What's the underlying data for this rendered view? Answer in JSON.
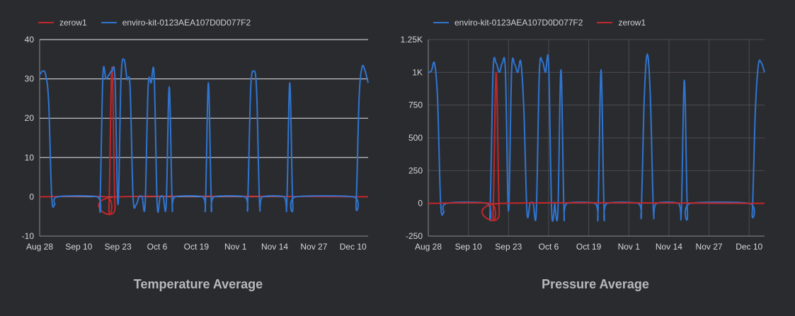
{
  "chart_data": [
    {
      "type": "line",
      "title": "Temperature Average",
      "ylim": [
        -10,
        40
      ],
      "yticks": [
        "-10",
        "0",
        "10",
        "20",
        "30",
        "40"
      ],
      "ytick_values": [
        -10,
        0,
        10,
        20,
        30,
        40
      ],
      "x_range": [
        "2023-08-28",
        "2023-12-15"
      ],
      "xticks": [
        "Aug 28",
        "Sep 10",
        "Sep 23",
        "Oct 6",
        "Oct 19",
        "Nov 1",
        "Nov 14",
        "Nov 27",
        "Dec 10"
      ],
      "xtick_dates": [
        "2023-08-28",
        "2023-09-10",
        "2023-09-23",
        "2023-10-06",
        "2023-10-19",
        "2023-11-01",
        "2023-11-14",
        "2023-11-27",
        "2023-12-10"
      ],
      "grid": true,
      "legend": "top-left",
      "series": [
        {
          "name": "zerow1",
          "color": "#c0282a",
          "points": [
            [
              "2023-08-28",
              0
            ],
            [
              "2023-09-19",
              0
            ],
            [
              "2023-09-20",
              -2.5
            ],
            [
              "2023-09-21",
              33
            ],
            [
              "2023-09-22",
              -2.5
            ],
            [
              "2023-09-23",
              0
            ],
            [
              "2023-12-15",
              0
            ]
          ]
        },
        {
          "name": "enviro-kit-0123AEA107D0D077F2",
          "color": "#2f75d0",
          "points": [
            [
              "2023-08-28",
              31
            ],
            [
              "2023-08-29",
              32
            ],
            [
              "2023-08-30",
              31
            ],
            [
              "2023-08-31",
              24
            ],
            [
              "2023-09-01",
              0
            ],
            [
              "2023-09-02",
              -2
            ],
            [
              "2023-09-03",
              0
            ],
            [
              "2023-09-16",
              0
            ],
            [
              "2023-09-17",
              -2
            ],
            [
              "2023-09-18",
              31
            ],
            [
              "2023-09-19",
              30
            ],
            [
              "2023-09-20",
              31
            ],
            [
              "2023-09-21",
              32
            ],
            [
              "2023-09-22",
              30
            ],
            [
              "2023-09-23",
              -2
            ],
            [
              "2023-09-24",
              30
            ],
            [
              "2023-09-25",
              35
            ],
            [
              "2023-09-26",
              30
            ],
            [
              "2023-09-27",
              28
            ],
            [
              "2023-09-28",
              0
            ],
            [
              "2023-09-29",
              -2
            ],
            [
              "2023-09-30",
              0
            ],
            [
              "2023-10-01",
              0
            ],
            [
              "2023-10-02",
              -2
            ],
            [
              "2023-10-03",
              28
            ],
            [
              "2023-10-04",
              29
            ],
            [
              "2023-10-05",
              31
            ],
            [
              "2023-10-06",
              -2
            ],
            [
              "2023-10-07",
              0
            ],
            [
              "2023-10-08",
              0
            ],
            [
              "2023-10-09",
              -2
            ],
            [
              "2023-10-10",
              28
            ],
            [
              "2023-10-11",
              -2
            ],
            [
              "2023-10-12",
              0
            ],
            [
              "2023-10-21",
              0
            ],
            [
              "2023-10-22",
              -2
            ],
            [
              "2023-10-23",
              29
            ],
            [
              "2023-10-24",
              -2
            ],
            [
              "2023-10-25",
              0
            ],
            [
              "2023-11-04",
              0
            ],
            [
              "2023-11-05",
              -2
            ],
            [
              "2023-11-06",
              27
            ],
            [
              "2023-11-07",
              32
            ],
            [
              "2023-11-08",
              27
            ],
            [
              "2023-11-09",
              -2
            ],
            [
              "2023-11-10",
              0
            ],
            [
              "2023-11-17",
              0
            ],
            [
              "2023-11-18",
              -2
            ],
            [
              "2023-11-19",
              29
            ],
            [
              "2023-11-20",
              -2
            ],
            [
              "2023-11-21",
              0
            ],
            [
              "2023-12-10",
              0
            ],
            [
              "2023-12-11",
              -2
            ],
            [
              "2023-12-12",
              25
            ],
            [
              "2023-12-13",
              33
            ],
            [
              "2023-12-14",
              32
            ],
            [
              "2023-12-15",
              29
            ]
          ]
        }
      ]
    },
    {
      "type": "line",
      "title": "Pressure Average",
      "ylim": [
        -250,
        1250
      ],
      "yticks": [
        "-250",
        "0",
        "250",
        "500",
        "750",
        "1K",
        "1.25K"
      ],
      "ytick_values": [
        -250,
        0,
        250,
        500,
        750,
        1000,
        1250
      ],
      "x_range": [
        "2023-08-28",
        "2023-12-15"
      ],
      "xticks": [
        "Aug 28",
        "Sep 10",
        "Sep 23",
        "Oct 6",
        "Oct 19",
        "Nov 1",
        "Nov 14",
        "Nov 27",
        "Dec 10"
      ],
      "xtick_dates": [
        "2023-08-28",
        "2023-09-10",
        "2023-09-23",
        "2023-10-06",
        "2023-10-19",
        "2023-11-01",
        "2023-11-14",
        "2023-11-27",
        "2023-12-10"
      ],
      "grid": true,
      "legend": "top-left",
      "series": [
        {
          "name": "enviro-kit-0123AEA107D0D077F2",
          "color": "#2f75d0",
          "points": [
            [
              "2023-08-28",
              1000
            ],
            [
              "2023-08-29",
              1010
            ],
            [
              "2023-08-30",
              1070
            ],
            [
              "2023-08-31",
              800
            ],
            [
              "2023-09-01",
              0
            ],
            [
              "2023-09-02",
              -70
            ],
            [
              "2023-09-03",
              0
            ],
            [
              "2023-09-16",
              0
            ],
            [
              "2023-09-17",
              -70
            ],
            [
              "2023-09-18",
              1010
            ],
            [
              "2023-09-19",
              1070
            ],
            [
              "2023-09-20",
              1000
            ],
            [
              "2023-09-21",
              1070
            ],
            [
              "2023-09-22",
              1010
            ],
            [
              "2023-09-23",
              -60
            ],
            [
              "2023-09-24",
              1010
            ],
            [
              "2023-09-25",
              1060
            ],
            [
              "2023-09-26",
              1000
            ],
            [
              "2023-09-27",
              1080
            ],
            [
              "2023-09-28",
              700
            ],
            [
              "2023-09-29",
              -70
            ],
            [
              "2023-09-30",
              0
            ],
            [
              "2023-10-01",
              0
            ],
            [
              "2023-10-02",
              -70
            ],
            [
              "2023-10-03",
              1000
            ],
            [
              "2023-10-04",
              1080
            ],
            [
              "2023-10-05",
              1000
            ],
            [
              "2023-10-06",
              1070
            ],
            [
              "2023-10-07",
              -70
            ],
            [
              "2023-10-08",
              0
            ],
            [
              "2023-10-08",
              0
            ],
            [
              "2023-10-09",
              -70
            ],
            [
              "2023-10-10",
              1020
            ],
            [
              "2023-10-11",
              -70
            ],
            [
              "2023-10-12",
              0
            ],
            [
              "2023-10-21",
              0
            ],
            [
              "2023-10-22",
              -70
            ],
            [
              "2023-10-23",
              1020
            ],
            [
              "2023-10-24",
              -70
            ],
            [
              "2023-10-25",
              0
            ],
            [
              "2023-11-04",
              0
            ],
            [
              "2023-11-05",
              -70
            ],
            [
              "2023-11-06",
              800
            ],
            [
              "2023-11-07",
              1140
            ],
            [
              "2023-11-08",
              800
            ],
            [
              "2023-11-09",
              -70
            ],
            [
              "2023-11-10",
              0
            ],
            [
              "2023-11-17",
              0
            ],
            [
              "2023-11-18",
              -70
            ],
            [
              "2023-11-19",
              940
            ],
            [
              "2023-11-20",
              -70
            ],
            [
              "2023-11-21",
              0
            ],
            [
              "2023-12-10",
              0
            ],
            [
              "2023-12-11",
              -70
            ],
            [
              "2023-12-12",
              700
            ],
            [
              "2023-12-13",
              1060
            ],
            [
              "2023-12-14",
              1070
            ],
            [
              "2023-12-15",
              1000
            ]
          ]
        },
        {
          "name": "zerow1",
          "color": "#c0282a",
          "points": [
            [
              "2023-08-28",
              0
            ],
            [
              "2023-09-17",
              0
            ],
            [
              "2023-09-18",
              -70
            ],
            [
              "2023-09-19",
              1000
            ],
            [
              "2023-09-20",
              -70
            ],
            [
              "2023-09-21",
              0
            ],
            [
              "2023-12-15",
              0
            ]
          ]
        }
      ]
    }
  ]
}
